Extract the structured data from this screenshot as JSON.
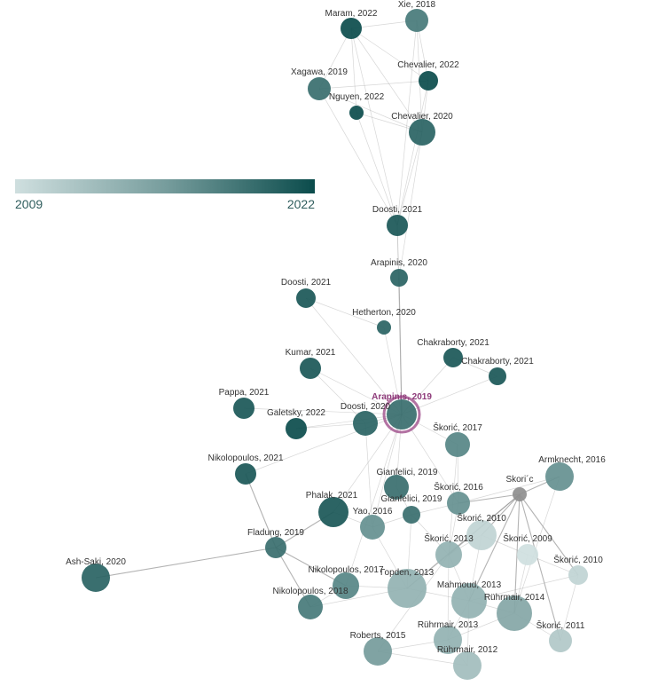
{
  "legend": {
    "min_label": "2009",
    "max_label": "2022",
    "min_year": 2009,
    "max_year": 2022,
    "color_start": "#cfdfdf",
    "color_end": "#0b4c4c"
  },
  "colors": {
    "edge": "#9a9a9a",
    "selected_ring": "#a0508c",
    "unknown_year": "#8f8f8f"
  },
  "selected_node": "arapinis-2019",
  "nodes": [
    {
      "id": "maram-2022",
      "label": "Maram, 2022",
      "year": 2022
    },
    {
      "id": "xie-2018",
      "label": "Xie, 2018",
      "year": 2018
    },
    {
      "id": "xagawa-2019",
      "label": "Xagawa, 2019",
      "year": 2019
    },
    {
      "id": "chevalier-2022",
      "label": "Chevalier, 2022",
      "year": 2022
    },
    {
      "id": "nguyen-2022",
      "label": "Nguyen, 2022",
      "year": 2022
    },
    {
      "id": "chevalier-2020",
      "label": "Chevalier, 2020",
      "year": 2020
    },
    {
      "id": "doosti-2021a",
      "label": "Doosti, 2021",
      "year": 2021
    },
    {
      "id": "arapinis-2020",
      "label": "Arapinis, 2020",
      "year": 2020
    },
    {
      "id": "doosti-2021b",
      "label": "Doosti, 2021",
      "year": 2021
    },
    {
      "id": "hetherton-2020",
      "label": "Hetherton, 2020",
      "year": 2020
    },
    {
      "id": "chakraborty-2021a",
      "label": "Chakraborty, 2021",
      "year": 2021
    },
    {
      "id": "chakraborty-2021b",
      "label": "Chakraborty, 2021",
      "year": 2021
    },
    {
      "id": "kumar-2021",
      "label": "Kumar, 2021",
      "year": 2021
    },
    {
      "id": "arapinis-2019",
      "label": "Arapinis, 2019",
      "year": 2019
    },
    {
      "id": "pappa-2021",
      "label": "Pappa, 2021",
      "year": 2021
    },
    {
      "id": "galetsky-2022",
      "label": "Galetsky, 2022",
      "year": 2022
    },
    {
      "id": "doosti-2020",
      "label": "Doosti, 2020",
      "year": 2020
    },
    {
      "id": "skoric-2017",
      "label": "Škorić, 2017",
      "year": 2017
    },
    {
      "id": "nikolopoulos-2021",
      "label": "Nikolopoulos, 2021",
      "year": 2021
    },
    {
      "id": "armknecht-2016",
      "label": "Armknecht, 2016",
      "year": 2016
    },
    {
      "id": "gianfelici-2019a",
      "label": "Gianfelici, 2019",
      "year": 2019
    },
    {
      "id": "skoric-c",
      "label": "Skori´c",
      "year": null
    },
    {
      "id": "skoric-2016",
      "label": "Škorić, 2016",
      "year": 2016
    },
    {
      "id": "phalak-2021",
      "label": "Phalak, 2021",
      "year": 2021
    },
    {
      "id": "gianfelici-2019b",
      "label": "Gianfelici, 2019",
      "year": 2019
    },
    {
      "id": "yao-2016",
      "label": "Yao, 2016",
      "year": 2016
    },
    {
      "id": "skoric-2010a",
      "label": "Škorić, 2010",
      "year": 2010
    },
    {
      "id": "fladung-2019",
      "label": "Fladung, 2019",
      "year": 2019
    },
    {
      "id": "skoric-2013",
      "label": "Škorić, 2013",
      "year": 2013
    },
    {
      "id": "skoric-2009",
      "label": "Škorić, 2009",
      "year": 2009
    },
    {
      "id": "skoric-2010b",
      "label": "Škorić, 2010",
      "year": 2010
    },
    {
      "id": "ash-saki-2020",
      "label": "Ash-Saki, 2020",
      "year": 2020
    },
    {
      "id": "nikolopoulos-2017",
      "label": "Nikolopoulos, 2017",
      "year": 2017
    },
    {
      "id": "jorden-2013",
      "label": "Горden, 2013",
      "year": 2013
    },
    {
      "id": "mahmoud-2013",
      "label": "Mahmoud, 2013",
      "year": 2013
    },
    {
      "id": "nikolopoulos-2018",
      "label": "Nikolopoulos, 2018",
      "year": 2018
    },
    {
      "id": "ruhrmair-2014",
      "label": "Rührmair, 2014",
      "year": 2014
    },
    {
      "id": "skoric-2011",
      "label": "Škorić, 2011",
      "year": 2011
    },
    {
      "id": "ruhrmair-2013",
      "label": "Rührmair, 2013",
      "year": 2013
    },
    {
      "id": "roberts-2015",
      "label": "Roberts, 2015",
      "year": 2015
    },
    {
      "id": "ruhrmair-2012",
      "label": "Rührmair, 2012",
      "year": 2012
    }
  ],
  "edges": [
    [
      "maram-2022",
      "xie-2018"
    ],
    [
      "maram-2022",
      "chevalier-2022"
    ],
    [
      "maram-2022",
      "chevalier-2020"
    ],
    [
      "maram-2022",
      "xagawa-2019"
    ],
    [
      "maram-2022",
      "nguyen-2022"
    ],
    [
      "xie-2018",
      "chevalier-2022"
    ],
    [
      "xie-2018",
      "chevalier-2020"
    ],
    [
      "xagawa-2019",
      "chevalier-2022"
    ],
    [
      "xagawa-2019",
      "chevalier-2020"
    ],
    [
      "xagawa-2019",
      "doosti-2021a"
    ],
    [
      "chevalier-2022",
      "chevalier-2020"
    ],
    [
      "nguyen-2022",
      "chevalier-2020"
    ],
    [
      "nguyen-2022",
      "doosti-2021a"
    ],
    [
      "chevalier-2020",
      "doosti-2021a"
    ],
    [
      "chevalier-2022",
      "doosti-2021a"
    ],
    [
      "maram-2022",
      "doosti-2021a"
    ],
    [
      "xie-2018",
      "doosti-2021a"
    ],
    [
      "chevalier-2020",
      "arapinis-2020"
    ],
    [
      "doosti-2021a",
      "arapinis-2020"
    ],
    [
      "doosti-2021a",
      "arapinis-2019"
    ],
    [
      "arapinis-2020",
      "arapinis-2019"
    ],
    [
      "doosti-2021b",
      "arapinis-2019"
    ],
    [
      "doosti-2021b",
      "hetherton-2020"
    ],
    [
      "hetherton-2020",
      "arapinis-2019"
    ],
    [
      "chakraborty-2021a",
      "chakraborty-2021b"
    ],
    [
      "chakraborty-2021a",
      "arapinis-2019"
    ],
    [
      "chakraborty-2021b",
      "arapinis-2019"
    ],
    [
      "kumar-2021",
      "arapinis-2019"
    ],
    [
      "kumar-2021",
      "doosti-2020"
    ],
    [
      "pappa-2021",
      "arapinis-2019"
    ],
    [
      "galetsky-2022",
      "arapinis-2019"
    ],
    [
      "galetsky-2022",
      "doosti-2020"
    ],
    [
      "doosti-2020",
      "arapinis-2019"
    ],
    [
      "skoric-2017",
      "arapinis-2019"
    ],
    [
      "nikolopoulos-2021",
      "arapinis-2019"
    ],
    [
      "nikolopoulos-2021",
      "fladung-2019"
    ],
    [
      "armknecht-2016",
      "skoric-2016"
    ],
    [
      "armknecht-2016",
      "skoric-c"
    ],
    [
      "gianfelici-2019a",
      "arapinis-2019"
    ],
    [
      "gianfelici-2019a",
      "gianfelici-2019b"
    ],
    [
      "skoric-c",
      "skoric-2016"
    ],
    [
      "skoric-c",
      "skoric-2010a"
    ],
    [
      "skoric-c",
      "skoric-2013"
    ],
    [
      "skoric-c",
      "jorden-2013"
    ],
    [
      "skoric-c",
      "mahmoud-2013"
    ],
    [
      "skoric-c",
      "ruhrmair-2014"
    ],
    [
      "skoric-c",
      "skoric-2011"
    ],
    [
      "skoric-c",
      "skoric-2010b"
    ],
    [
      "skoric-2016",
      "arapinis-2019"
    ],
    [
      "skoric-2016",
      "gianfelici-2019b"
    ],
    [
      "skoric-2016",
      "skoric-2013"
    ],
    [
      "phalak-2021",
      "arapinis-2019"
    ],
    [
      "phalak-2021",
      "fladung-2019"
    ],
    [
      "phalak-2021",
      "yao-2016"
    ],
    [
      "gianfelici-2019b",
      "yao-2016"
    ],
    [
      "gianfelici-2019b",
      "skoric-2013"
    ],
    [
      "gianfelici-2019b",
      "jorden-2013"
    ],
    [
      "yao-2016",
      "arapinis-2019"
    ],
    [
      "yao-2016",
      "jorden-2013"
    ],
    [
      "skoric-2010a",
      "skoric-2013"
    ],
    [
      "skoric-2010a",
      "skoric-2009"
    ],
    [
      "skoric-2010a",
      "mahmoud-2013"
    ],
    [
      "skoric-2013",
      "jorden-2013"
    ],
    [
      "skoric-2013",
      "mahmoud-2013"
    ],
    [
      "skoric-2013",
      "ruhrmair-2013"
    ],
    [
      "skoric-2009",
      "skoric-2010b"
    ],
    [
      "skoric-2009",
      "ruhrmair-2014"
    ],
    [
      "fladung-2019",
      "ash-saki-2020"
    ],
    [
      "fladung-2019",
      "nikolopoulos-2018"
    ],
    [
      "fladung-2019",
      "nikolopoulos-2017"
    ],
    [
      "nikolopoulos-2017",
      "nikolopoulos-2018"
    ],
    [
      "nikolopoulos-2017",
      "arapinis-2019"
    ],
    [
      "nikolopoulos-2017",
      "jorden-2013"
    ],
    [
      "nikolopoulos-2018",
      "jorden-2013"
    ],
    [
      "jorden-2013",
      "mahmoud-2013"
    ],
    [
      "mahmoud-2013",
      "ruhrmair-2014"
    ],
    [
      "mahmoud-2013",
      "ruhrmair-2013"
    ],
    [
      "ruhrmair-2014",
      "skoric-2011"
    ],
    [
      "ruhrmair-2014",
      "ruhrmair-2013"
    ],
    [
      "ruhrmair-2013",
      "ruhrmair-2012"
    ],
    [
      "ruhrmair-2013",
      "roberts-2015"
    ],
    [
      "ruhrmair-2012",
      "mahmoud-2013"
    ],
    [
      "roberts-2015",
      "skoric-2013"
    ],
    [
      "skoric-2011",
      "skoric-2010b"
    ],
    [
      "skoric-2017",
      "skoric-2016"
    ],
    [
      "skoric-2017",
      "skoric-2013"
    ],
    [
      "doosti-2020",
      "yao-2016"
    ],
    [
      "armknecht-2016",
      "ruhrmair-2014"
    ],
    [
      "skoric-2010b",
      "mahmoud-2013"
    ],
    [
      "roberts-2015",
      "ruhrmair-2012"
    ]
  ]
}
